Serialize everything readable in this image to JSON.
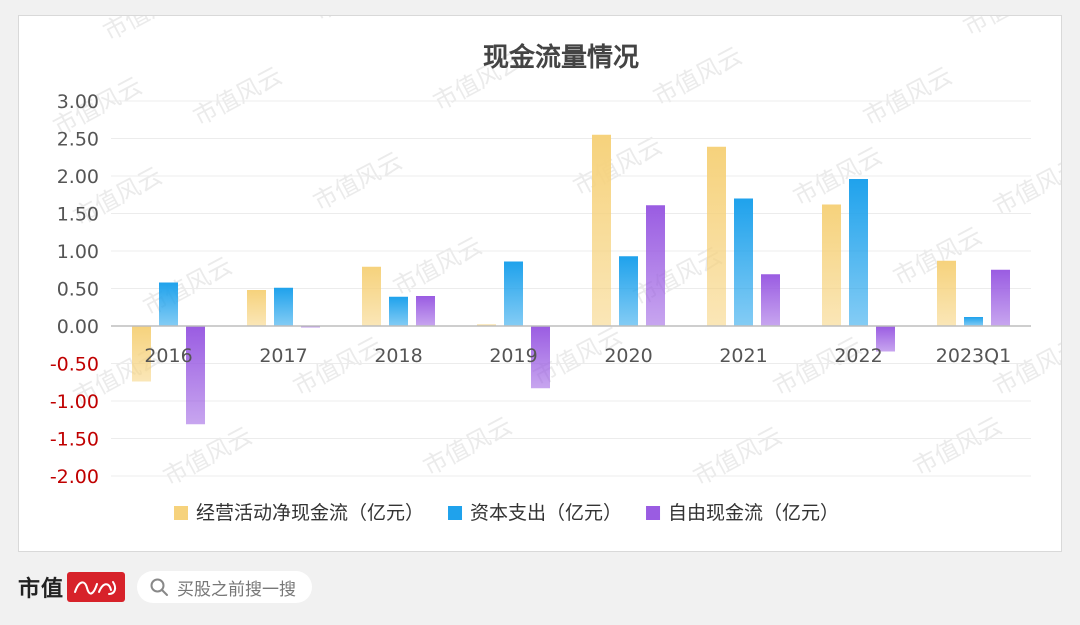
{
  "colors": {
    "operating": "#f6d27c",
    "capex": "#1fa2ec",
    "free": "#9a5ce2",
    "negative_label": "#c00000",
    "positive_label": "#555555",
    "brand_red": "#d7222a"
  },
  "footer": {
    "brand": "市值",
    "search_placeholder": "买股之前搜一搜"
  },
  "watermark": "市值风云",
  "chart_data": {
    "type": "bar",
    "title": "现金流量情况",
    "categories": [
      "2016",
      "2017",
      "2018",
      "2019",
      "2020",
      "2021",
      "2022",
      "2023Q1"
    ],
    "series": [
      {
        "name": "经营活动净现金流（亿元）",
        "values": [
          -0.74,
          0.48,
          0.79,
          0.02,
          2.55,
          2.39,
          1.62,
          0.87
        ]
      },
      {
        "name": "资本支出（亿元）",
        "values": [
          0.58,
          0.51,
          0.39,
          0.86,
          0.93,
          1.7,
          1.96,
          0.12
        ]
      },
      {
        "name": "自由现金流（亿元）",
        "values": [
          -1.31,
          -0.02,
          0.4,
          -0.83,
          1.61,
          0.69,
          -0.34,
          0.75
        ]
      }
    ],
    "yticks": [
      "3.00",
      "2.50",
      "2.00",
      "1.50",
      "1.00",
      "0.50",
      "0.00",
      "-0.50",
      "-1.00",
      "-1.50",
      "-2.00"
    ],
    "ylim": [
      -2.0,
      3.0
    ],
    "grid": true,
    "legend_position": "bottom"
  }
}
